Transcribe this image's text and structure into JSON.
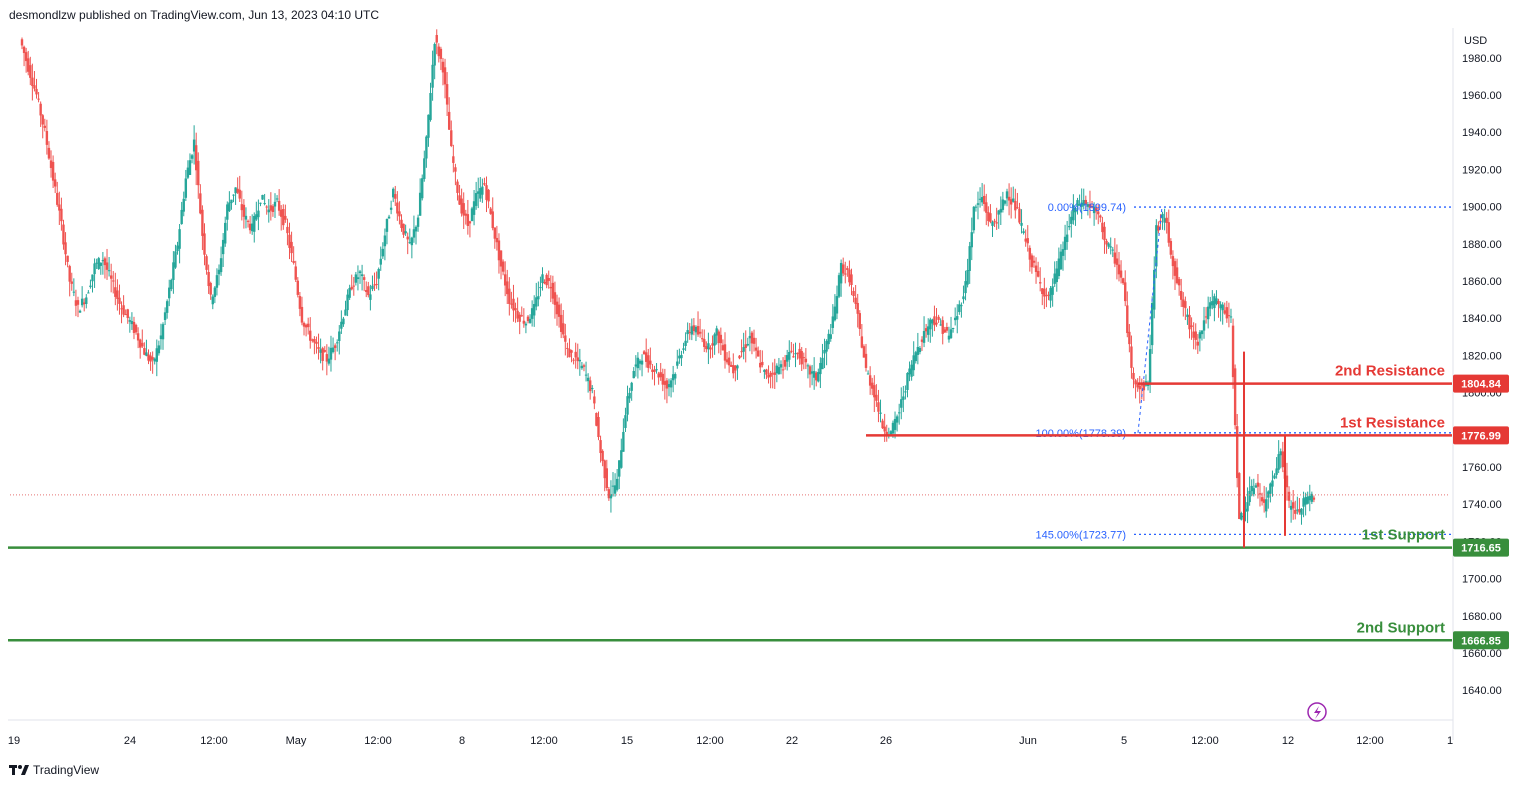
{
  "header": {
    "publish_line": "desmondlzw published on TradingView.com, Jun 13, 2023 04:10 UTC"
  },
  "footer": {
    "brand": "TradingView",
    "logo_icon": "tradingview-logo-icon"
  },
  "colors": {
    "up": "#26a69a",
    "down": "#ef5350",
    "resistance": "#e53935",
    "support": "#388e3c",
    "fib": "#2962ff",
    "current": "#e57373"
  },
  "chart_data": {
    "type": "candlestick",
    "currency": "USD",
    "y_ticks": [
      1980,
      1960,
      1940,
      1920,
      1900,
      1880,
      1860,
      1840,
      1820,
      1800,
      1780,
      1760,
      1740,
      1720,
      1700,
      1680,
      1660,
      1640
    ],
    "y_range": [
      1624,
      1996
    ],
    "x_ticks": [
      "19",
      "24",
      "12:00",
      "May",
      "12:00",
      "8",
      "12:00",
      "15",
      "12:00",
      "22",
      "26",
      "Jun",
      "5",
      "12:00",
      "12",
      "12:00",
      "1"
    ],
    "current_price": 1745,
    "levels": [
      {
        "label": "2nd Resistance",
        "value": 1804.84,
        "value_label": "1804.84",
        "kind": "resistance"
      },
      {
        "label": "1st Resistance",
        "value": 1776.99,
        "value_label": "1776.99",
        "kind": "resistance"
      },
      {
        "label": "1st Support",
        "value": 1716.65,
        "value_label": "1716.65",
        "kind": "support"
      },
      {
        "label": "2nd Support",
        "value": 1666.85,
        "value_label": "1666.85",
        "kind": "support"
      }
    ],
    "fib_levels": [
      {
        "label": "0.00%(1899.74)",
        "value": 1899.74
      },
      {
        "label": "100.00%(1778.39)",
        "value": 1778.39
      },
      {
        "label": "145.00%(1723.77)",
        "value": 1723.77
      }
    ],
    "price_path": [
      1990,
      1975,
      1960,
      1940,
      1915,
      1890,
      1860,
      1845,
      1852,
      1868,
      1872,
      1860,
      1848,
      1840,
      1832,
      1822,
      1815,
      1830,
      1855,
      1880,
      1915,
      1935,
      1885,
      1850,
      1865,
      1900,
      1910,
      1895,
      1888,
      1905,
      1898,
      1902,
      1890,
      1868,
      1840,
      1830,
      1822,
      1818,
      1826,
      1842,
      1858,
      1864,
      1852,
      1860,
      1885,
      1908,
      1890,
      1878,
      1895,
      1935,
      1990,
      1975,
      1930,
      1902,
      1890,
      1905,
      1912,
      1890,
      1868,
      1850,
      1842,
      1838,
      1845,
      1862,
      1858,
      1840,
      1822,
      1818,
      1812,
      1800,
      1768,
      1745,
      1752,
      1790,
      1812,
      1820,
      1815,
      1810,
      1803,
      1812,
      1826,
      1836,
      1830,
      1824,
      1832,
      1820,
      1812,
      1822,
      1830,
      1818,
      1808,
      1812,
      1815,
      1822,
      1820,
      1812,
      1808,
      1822,
      1838,
      1868,
      1862,
      1840,
      1812,
      1800,
      1782,
      1778,
      1790,
      1808,
      1822,
      1832,
      1840,
      1836,
      1830,
      1842,
      1858,
      1898,
      1905,
      1890,
      1895,
      1908,
      1900,
      1885,
      1870,
      1858,
      1850,
      1865,
      1882,
      1898,
      1903,
      1900,
      1895,
      1880,
      1872,
      1858,
      1812,
      1802,
      1805,
      1888,
      1895,
      1870,
      1850,
      1836,
      1828,
      1842,
      1850,
      1845,
      1838,
      1730,
      1742,
      1752,
      1738,
      1755,
      1768,
      1740,
      1735,
      1742,
      1745
    ]
  }
}
